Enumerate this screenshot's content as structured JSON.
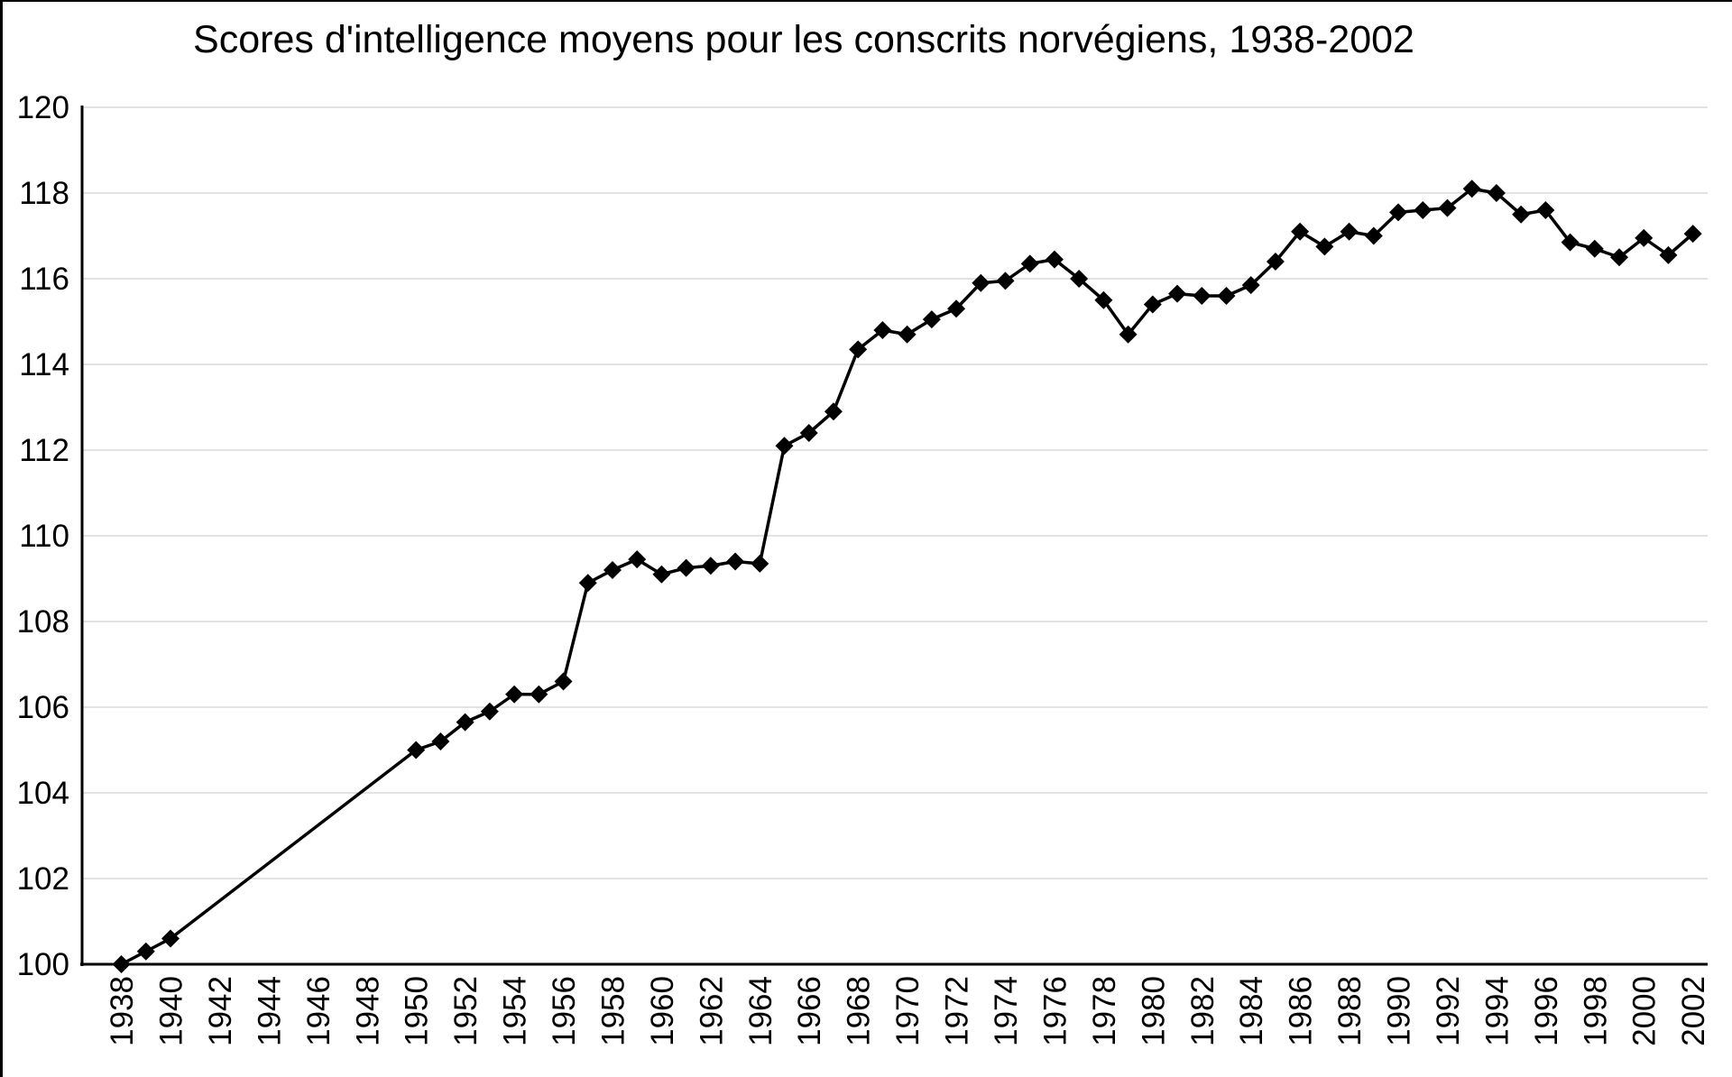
{
  "page": {
    "background": "#ffffff",
    "frame_border_color": "#000000"
  },
  "chart_data": {
    "type": "line",
    "title": "Scores d'intelligence moyens pour les conscrits norvégiens, 1938-2002",
    "xlabel": "",
    "ylabel": "",
    "legend": "none",
    "grid": "horizontal",
    "marker": "diamond",
    "ylim": [
      100,
      120
    ],
    "xlim_years": [
      1936.4,
      2002.6
    ],
    "y_ticks": [
      100,
      102,
      104,
      106,
      108,
      110,
      112,
      114,
      116,
      118,
      120
    ],
    "x_ticks": [
      1938,
      1940,
      1942,
      1944,
      1946,
      1948,
      1950,
      1952,
      1954,
      1956,
      1958,
      1960,
      1962,
      1964,
      1966,
      1968,
      1970,
      1972,
      1974,
      1976,
      1978,
      1980,
      1982,
      1984,
      1986,
      1988,
      1990,
      1992,
      1994,
      1996,
      1998,
      2000,
      2002
    ],
    "points": [
      [
        1938,
        100.0
      ],
      [
        1939,
        100.3
      ],
      [
        1940,
        100.6
      ],
      [
        1950,
        105.0
      ],
      [
        1951,
        105.2
      ],
      [
        1952,
        105.65
      ],
      [
        1953,
        105.9
      ],
      [
        1954,
        106.3
      ],
      [
        1955,
        106.3
      ],
      [
        1956,
        106.6
      ],
      [
        1957,
        108.9
      ],
      [
        1958,
        109.2
      ],
      [
        1959,
        109.45
      ],
      [
        1960,
        109.1
      ],
      [
        1961,
        109.25
      ],
      [
        1962,
        109.3
      ],
      [
        1963,
        109.4
      ],
      [
        1964,
        109.35
      ],
      [
        1965,
        112.1
      ],
      [
        1966,
        112.4
      ],
      [
        1967,
        112.9
      ],
      [
        1968,
        114.35
      ],
      [
        1969,
        114.8
      ],
      [
        1970,
        114.7
      ],
      [
        1971,
        115.05
      ],
      [
        1972,
        115.3
      ],
      [
        1973,
        115.9
      ],
      [
        1974,
        115.95
      ],
      [
        1975,
        116.35
      ],
      [
        1976,
        116.45
      ],
      [
        1977,
        116.0
      ],
      [
        1978,
        115.5
      ],
      [
        1979,
        114.7
      ],
      [
        1980,
        115.4
      ],
      [
        1981,
        115.65
      ],
      [
        1982,
        115.6
      ],
      [
        1983,
        115.6
      ],
      [
        1984,
        115.85
      ],
      [
        1985,
        116.4
      ],
      [
        1986,
        117.1
      ],
      [
        1987,
        116.75
      ],
      [
        1988,
        117.1
      ],
      [
        1989,
        117.0
      ],
      [
        1990,
        117.55
      ],
      [
        1991,
        117.6
      ],
      [
        1992,
        117.65
      ],
      [
        1993,
        118.1
      ],
      [
        1994,
        118.0
      ],
      [
        1995,
        117.5
      ],
      [
        1996,
        117.6
      ],
      [
        1997,
        116.85
      ],
      [
        1998,
        116.7
      ],
      [
        1999,
        116.5
      ],
      [
        2000,
        116.95
      ],
      [
        2001,
        116.55
      ],
      [
        2002,
        117.05
      ]
    ],
    "colors": {
      "line": "#000000",
      "marker": "#000000",
      "grid": "#d9d9d9",
      "axis": "#000000",
      "text": "#000000"
    }
  }
}
